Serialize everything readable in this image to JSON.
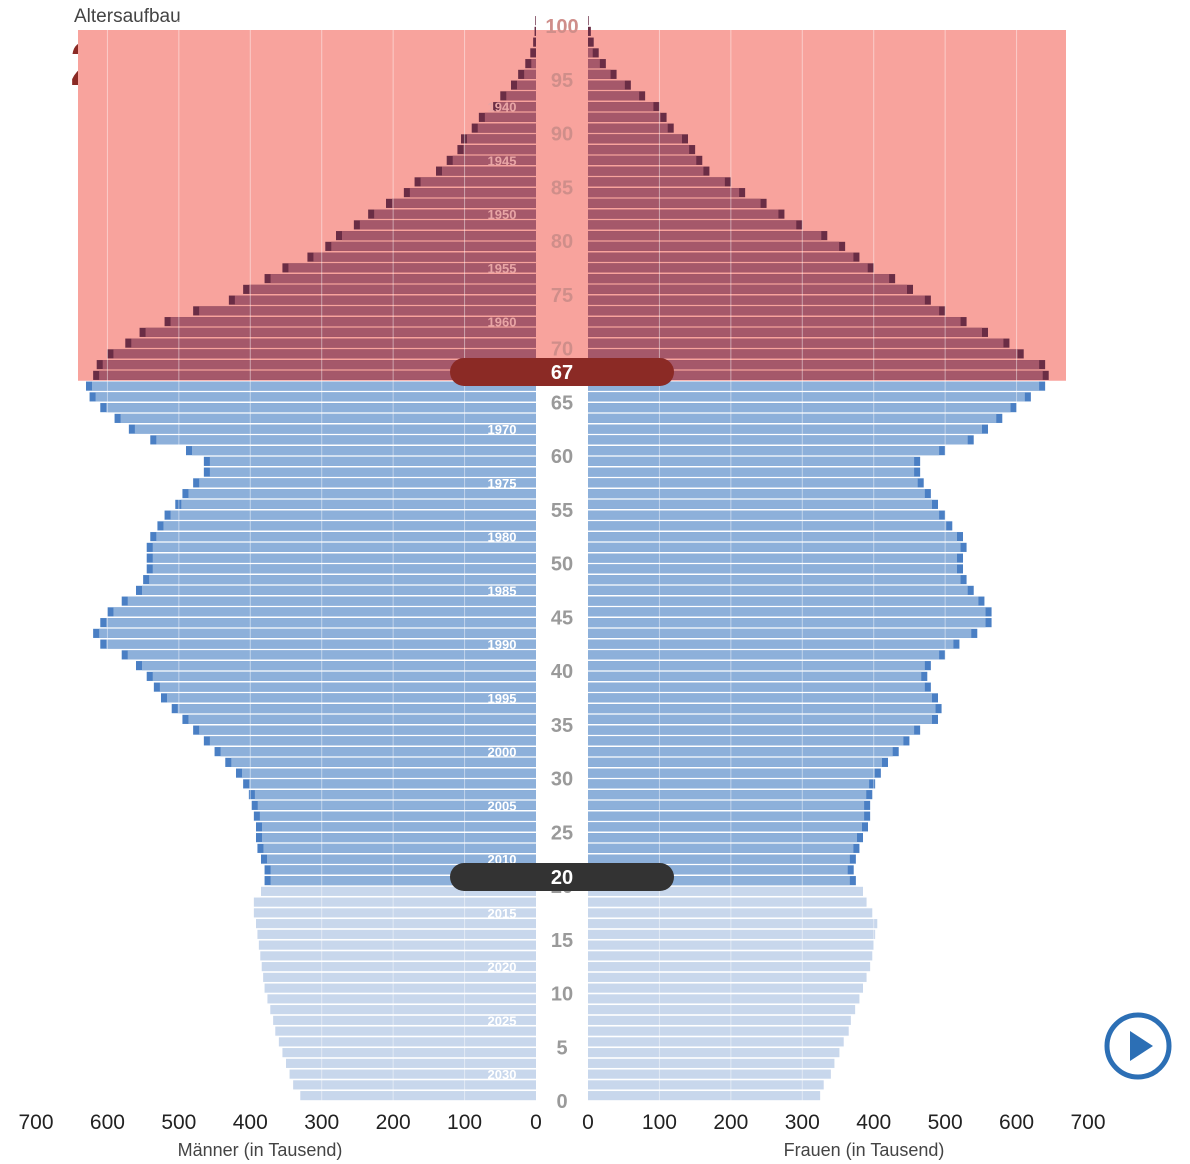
{
  "header": {
    "title": "Altersaufbau",
    "year": "2032"
  },
  "controls": {
    "play_icon": "play-icon"
  },
  "chart_data": {
    "type": "bar",
    "orientation": "horizontal-pyramid",
    "ages": [
      0,
      1,
      2,
      3,
      4,
      5,
      6,
      7,
      8,
      9,
      10,
      11,
      12,
      13,
      14,
      15,
      16,
      17,
      18,
      19,
      20,
      21,
      22,
      23,
      24,
      25,
      26,
      27,
      28,
      29,
      30,
      31,
      32,
      33,
      34,
      35,
      36,
      37,
      38,
      39,
      40,
      41,
      42,
      43,
      44,
      45,
      46,
      47,
      48,
      49,
      50,
      51,
      52,
      53,
      54,
      55,
      56,
      57,
      58,
      59,
      60,
      61,
      62,
      63,
      64,
      65,
      66,
      67,
      68,
      69,
      70,
      71,
      72,
      73,
      74,
      75,
      76,
      77,
      78,
      79,
      80,
      81,
      82,
      83,
      84,
      85,
      86,
      87,
      88,
      89,
      90,
      91,
      92,
      93,
      94,
      95,
      96,
      97,
      98,
      99,
      100
    ],
    "series": [
      {
        "name": "Männer (in Tausend)",
        "values": [
          330,
          340,
          345,
          350,
          355,
          360,
          365,
          368,
          372,
          376,
          380,
          382,
          384,
          386,
          388,
          390,
          392,
          395,
          395,
          385,
          380,
          380,
          385,
          390,
          392,
          392,
          395,
          398,
          402,
          410,
          420,
          435,
          450,
          465,
          480,
          495,
          510,
          525,
          535,
          545,
          560,
          580,
          610,
          620,
          610,
          600,
          580,
          560,
          550,
          545,
          545,
          545,
          540,
          530,
          520,
          505,
          495,
          480,
          465,
          465,
          490,
          540,
          570,
          590,
          610,
          625,
          630,
          620,
          615,
          600,
          575,
          555,
          520,
          480,
          430,
          410,
          380,
          355,
          320,
          295,
          280,
          255,
          235,
          210,
          185,
          170,
          140,
          125,
          110,
          105,
          90,
          80,
          60,
          50,
          35,
          25,
          15,
          8,
          4,
          2,
          1
        ]
      },
      {
        "name": "Frauen (in Tausend)",
        "values": [
          325,
          330,
          340,
          345,
          352,
          358,
          365,
          368,
          374,
          380,
          385,
          390,
          395,
          398,
          400,
          402,
          405,
          398,
          390,
          385,
          375,
          372,
          375,
          380,
          385,
          392,
          395,
          395,
          398,
          402,
          410,
          420,
          435,
          450,
          465,
          490,
          495,
          490,
          480,
          475,
          480,
          500,
          520,
          545,
          565,
          565,
          555,
          540,
          530,
          525,
          525,
          530,
          525,
          510,
          500,
          490,
          480,
          470,
          465,
          465,
          500,
          540,
          560,
          580,
          600,
          620,
          640,
          645,
          640,
          610,
          590,
          560,
          530,
          500,
          480,
          455,
          430,
          400,
          380,
          360,
          335,
          300,
          275,
          250,
          220,
          200,
          170,
          160,
          150,
          140,
          120,
          110,
          100,
          80,
          60,
          40,
          25,
          15,
          8,
          4,
          1
        ]
      }
    ],
    "birth_year_labels": [
      "1940",
      "1945",
      "1950",
      "1955",
      "1960",
      "1970",
      "1975",
      "1980",
      "1985",
      "1990",
      "1995",
      "2000",
      "2005",
      "2010",
      "2015",
      "2020",
      "2025",
      "2030"
    ],
    "age_tick_labels": [
      "0",
      "5",
      "10",
      "15",
      "20",
      "25",
      "30",
      "35",
      "40",
      "45",
      "50",
      "55",
      "60",
      "65",
      "70",
      "75",
      "80",
      "85",
      "90",
      "95",
      "100"
    ],
    "x_tick_labels": [
      "700",
      "600",
      "500",
      "400",
      "300",
      "200",
      "100",
      "0"
    ],
    "x_range": [
      0,
      700
    ],
    "xlabel_left": "Männer (in Tausend)",
    "xlabel_right": "Frauen (in Tausend)",
    "markers": [
      {
        "label": "67",
        "age": 67,
        "color": "#8b2a25"
      },
      {
        "label": "20",
        "age": 20,
        "color": "#333333"
      }
    ],
    "colors": {
      "under20": "#c8d7ec",
      "working": "#8db0da",
      "working_change": "#4a7fc4",
      "retired": "#a5586a",
      "retired_change": "#6a2d45",
      "retirement_band": "#f8a39d"
    }
  }
}
